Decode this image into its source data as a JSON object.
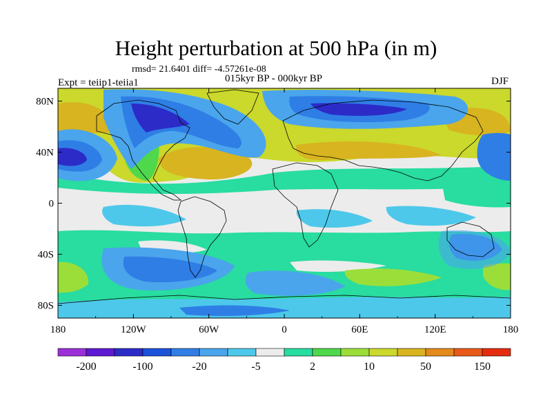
{
  "chart_data": {
    "type": "heatmap",
    "title": "Height perturbation at 500 hPa (in m)",
    "stats": "rmsd= 21.6401 diff= -4.57261e-08",
    "experiment": "Expt = teiip1-teiia1",
    "subtitle": "015kyr BP - 000kyr BP",
    "season": "DJF",
    "x_ticks": [
      "180",
      "120W",
      "60W",
      "0",
      "60E",
      "120E",
      "180"
    ],
    "y_ticks": [
      "80N",
      "40N",
      "0",
      "40S",
      "80S"
    ],
    "colorbar_labels": [
      "-200",
      "-100",
      "-20",
      "-5",
      "2",
      "10",
      "50",
      "150"
    ],
    "colorbar_colors": [
      "#9b30d8",
      "#5e1ad2",
      "#2c2bc8",
      "#1b52da",
      "#2f7ee6",
      "#4aa5ec",
      "#4dc8ea",
      "#ececec",
      "#29dca0",
      "#4fd84c",
      "#9bde3a",
      "#cbd82c",
      "#d8b420",
      "#e48a1c",
      "#e85a16",
      "#e62c10"
    ],
    "features": [
      {
        "name": "positive anomaly North Pacific",
        "lon": -170,
        "lat": 60
      },
      {
        "name": "negative anomaly Central Pacific",
        "lon": -172,
        "lat": 38
      },
      {
        "name": "negative anomaly Canada/Greenland",
        "lon": -85,
        "lat": 62
      },
      {
        "name": "positive anomaly North Atlantic",
        "lon": -40,
        "lat": 30
      },
      {
        "name": "negative anomaly Siberia",
        "lon": 70,
        "lat": 68
      },
      {
        "name": "positive anomaly Eurasia midlatitudes",
        "lon": 60,
        "lat": 40
      },
      {
        "name": "negative anomaly South Pacific",
        "lon": -110,
        "lat": -50
      }
    ]
  }
}
